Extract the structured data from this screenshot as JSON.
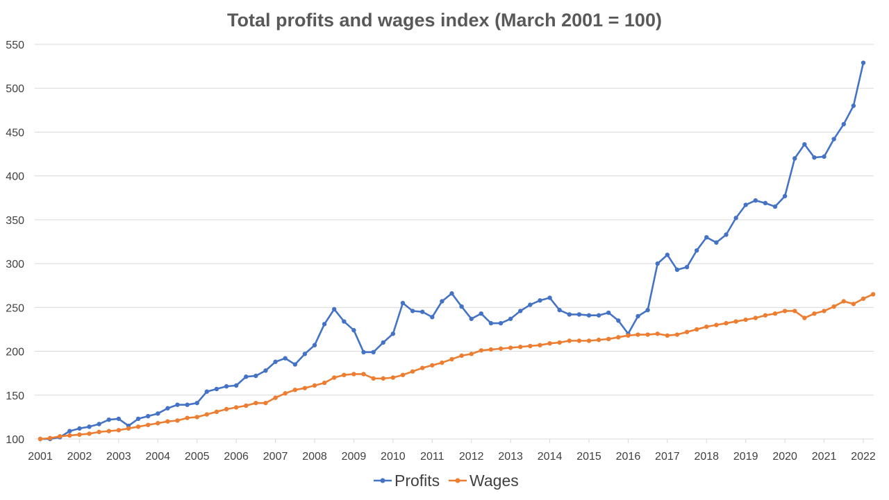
{
  "chart_data": {
    "type": "line",
    "title": "Total profits and wages index (March 2001 = 100)",
    "xlabel": "",
    "ylabel": "",
    "ylim": [
      100,
      550
    ],
    "yticks": [
      "100",
      "150",
      "200",
      "250",
      "300",
      "350",
      "400",
      "450",
      "500",
      "550"
    ],
    "xlim": [
      2001,
      2022
    ],
    "xticks": [
      "2001",
      "2002",
      "2003",
      "2004",
      "2005",
      "2006",
      "2007",
      "2008",
      "2009",
      "2010",
      "2011",
      "2012",
      "2013",
      "2014",
      "2015",
      "2016",
      "2017",
      "2018",
      "2019",
      "2020",
      "2021",
      "2022"
    ],
    "grid": true,
    "legend": "bottom-center",
    "points_per_year": 4,
    "series": [
      {
        "name": "Profits",
        "color": "#4472C4",
        "values": [
          100,
          100,
          102,
          109,
          112,
          114,
          117,
          122,
          123,
          115,
          123,
          126,
          129,
          135,
          139,
          139,
          141,
          154,
          157,
          160,
          161,
          171,
          172,
          178,
          188,
          192,
          185,
          197,
          207,
          231,
          248,
          234,
          224,
          199,
          199,
          210,
          220,
          255,
          246,
          245,
          239,
          257,
          266,
          251,
          237,
          243,
          232,
          232,
          237,
          246,
          253,
          258,
          261,
          247,
          242,
          242,
          241,
          241,
          244,
          235,
          220,
          240,
          247,
          300,
          310,
          293,
          296,
          315,
          330,
          324,
          333,
          352,
          367,
          372,
          369,
          365,
          377,
          420,
          436,
          421,
          422,
          442,
          459,
          480,
          529
        ]
      },
      {
        "name": "Wages",
        "color": "#ED7D31",
        "values": [
          100,
          101,
          103,
          104,
          105,
          106,
          108,
          109,
          110,
          112,
          114,
          116,
          118,
          120,
          121,
          124,
          125,
          128,
          131,
          134,
          136,
          138,
          141,
          141,
          147,
          152,
          156,
          158,
          161,
          164,
          170,
          173,
          174,
          174,
          169,
          169,
          170,
          173,
          177,
          181,
          184,
          187,
          191,
          195,
          197,
          201,
          202,
          203,
          204,
          205,
          206,
          207,
          209,
          210,
          212,
          212,
          212,
          213,
          214,
          216,
          218,
          219,
          219,
          220,
          218,
          219,
          222,
          225,
          228,
          230,
          232,
          234,
          236,
          238,
          241,
          243,
          246,
          246,
          238,
          243,
          246,
          251,
          257,
          254,
          260,
          265
        ]
      }
    ]
  }
}
